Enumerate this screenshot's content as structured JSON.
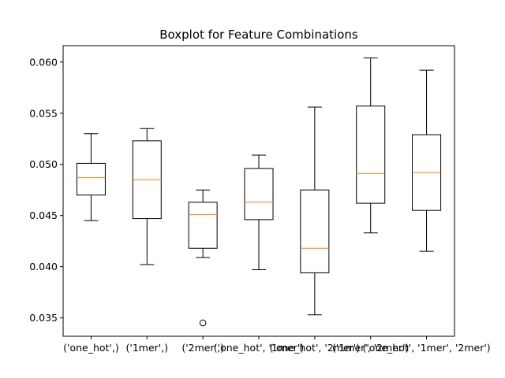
{
  "chart_data": {
    "type": "boxplot",
    "title": "Boxplot for Feature Combinations",
    "xlabel": "",
    "ylabel": "",
    "ylim": [
      0.0332,
      0.0616
    ],
    "yticks": [
      0.035,
      0.04,
      0.045,
      0.05,
      0.055,
      0.06
    ],
    "ytick_labels": [
      "0.035",
      "0.040",
      "0.045",
      "0.050",
      "0.055",
      "0.060"
    ],
    "categories": [
      "('one_hot',)",
      "('1mer',)",
      "('2mer',)",
      "('one_hot', '1mer')",
      "('one_hot', '2mer')",
      "('1mer', '2mer')",
      "('one_hot', '1mer', '2mer')"
    ],
    "boxes": [
      {
        "whisker_low": 0.0445,
        "q1": 0.047,
        "median": 0.0487,
        "q3": 0.0501,
        "whisker_high": 0.053,
        "fliers": []
      },
      {
        "whisker_low": 0.0402,
        "q1": 0.0447,
        "median": 0.0485,
        "q3": 0.0523,
        "whisker_high": 0.0535,
        "fliers": []
      },
      {
        "whisker_low": 0.0409,
        "q1": 0.0418,
        "median": 0.0451,
        "q3": 0.0463,
        "whisker_high": 0.0475,
        "fliers": [
          0.0345
        ]
      },
      {
        "whisker_low": 0.0397,
        "q1": 0.0446,
        "median": 0.0463,
        "q3": 0.0496,
        "whisker_high": 0.0509,
        "fliers": []
      },
      {
        "whisker_low": 0.0353,
        "q1": 0.0394,
        "median": 0.0418,
        "q3": 0.0475,
        "whisker_high": 0.0556,
        "fliers": []
      },
      {
        "whisker_low": 0.0433,
        "q1": 0.0462,
        "median": 0.0491,
        "q3": 0.0557,
        "whisker_high": 0.0604,
        "fliers": []
      },
      {
        "whisker_low": 0.0415,
        "q1": 0.0455,
        "median": 0.0492,
        "q3": 0.0529,
        "whisker_high": 0.0592,
        "fliers": []
      }
    ],
    "grid": false,
    "colors": {
      "box": "#000000",
      "median": "#ff7f0e",
      "background": "#ffffff"
    }
  }
}
